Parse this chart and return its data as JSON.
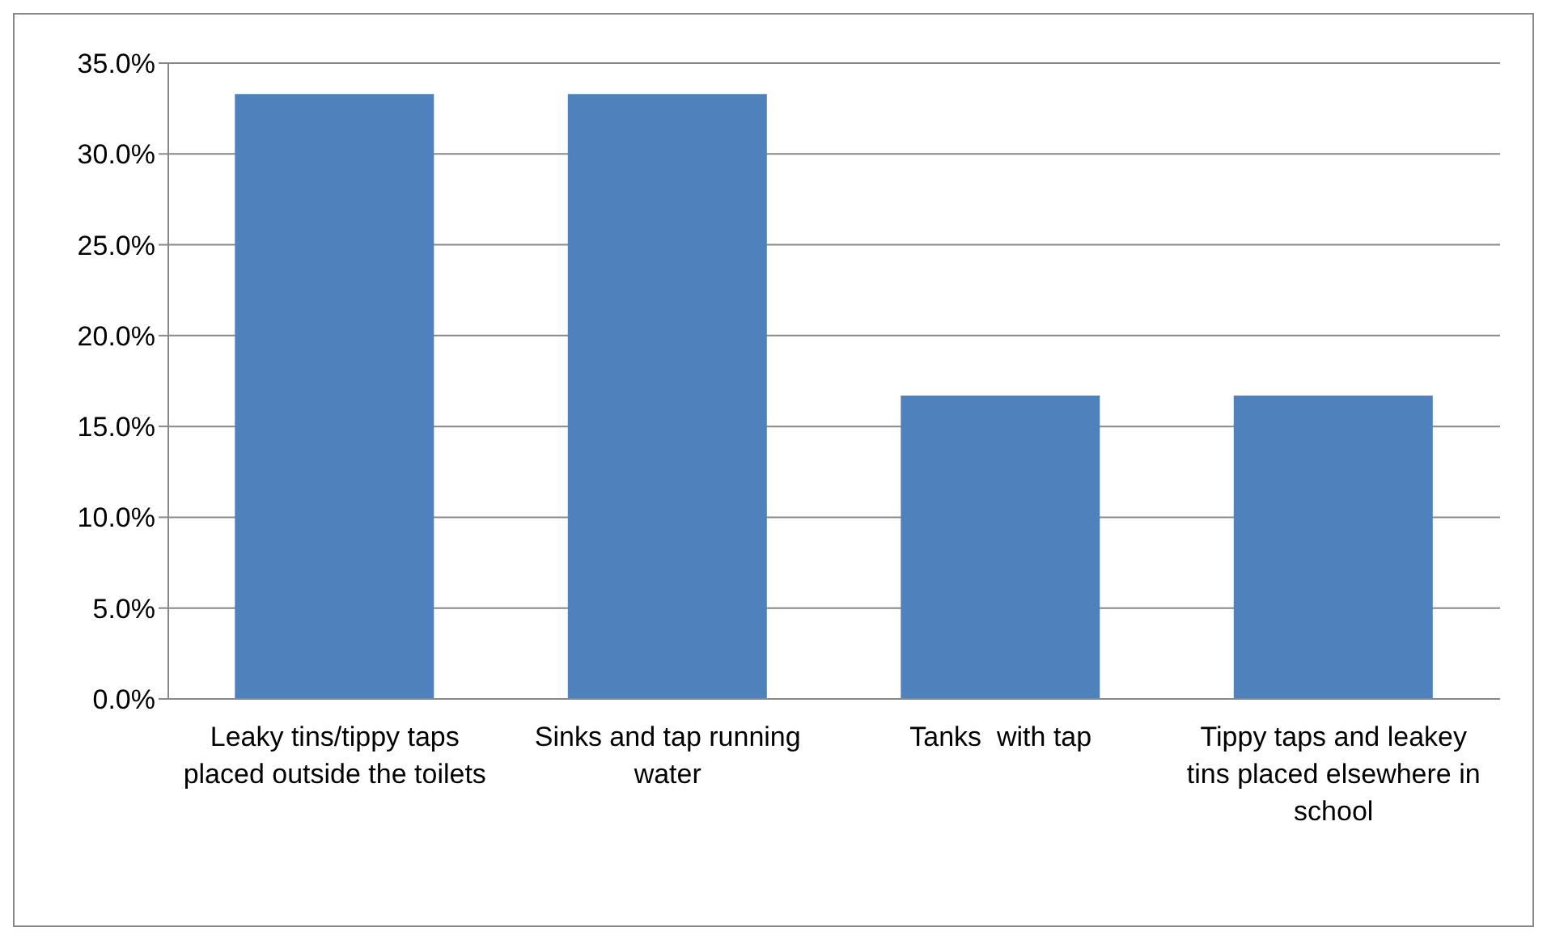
{
  "chart_data": {
    "type": "bar",
    "categories": [
      "Leaky tins/tippy taps placed outside the toilets",
      "Sinks and tap running water",
      "Tanks  with tap",
      "Tippy taps and leakey tins placed elsewhere in school"
    ],
    "values": [
      33.3,
      33.3,
      16.7,
      16.7
    ],
    "color": "#4f81bd",
    "ylim": [
      0,
      35
    ],
    "yticks": [
      {
        "value": 0,
        "label": "0.0%"
      },
      {
        "value": 5,
        "label": "5.0%"
      },
      {
        "value": 10,
        "label": "10.0%"
      },
      {
        "value": 15,
        "label": "15.0%"
      },
      {
        "value": 20,
        "label": "20.0%"
      },
      {
        "value": 25,
        "label": "25.0%"
      },
      {
        "value": 30,
        "label": "30.0%"
      },
      {
        "value": 35,
        "label": "35.0%"
      }
    ],
    "grid": "y",
    "legend": false
  }
}
